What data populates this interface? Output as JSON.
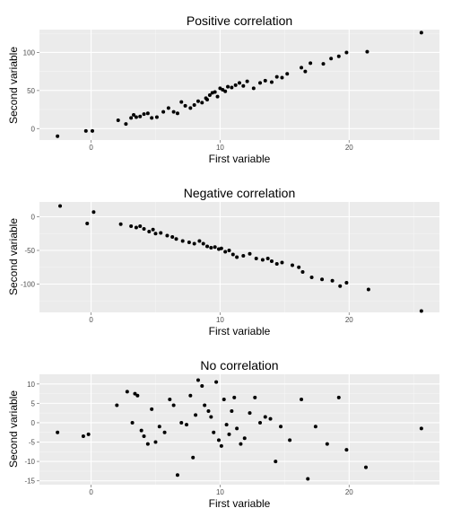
{
  "chart_data": [
    {
      "type": "scatter",
      "title": "Positive correlation",
      "xlabel": "First variable",
      "ylabel": "Second variable",
      "xlim": [
        -4,
        27
      ],
      "ylim": [
        -15,
        130
      ],
      "x_ticks": [
        0,
        10,
        20
      ],
      "y_ticks": [
        0,
        50,
        100
      ],
      "grid": true,
      "points": [
        [
          -2.6,
          -10
        ],
        [
          -0.4,
          -3
        ],
        [
          0.1,
          -3
        ],
        [
          2.1,
          11
        ],
        [
          2.7,
          6
        ],
        [
          3.1,
          14
        ],
        [
          3.3,
          18
        ],
        [
          3.5,
          15
        ],
        [
          3.8,
          16
        ],
        [
          4.1,
          19
        ],
        [
          4.4,
          20
        ],
        [
          4.7,
          14
        ],
        [
          5.1,
          15
        ],
        [
          5.6,
          22
        ],
        [
          6.0,
          27
        ],
        [
          6.4,
          22
        ],
        [
          6.7,
          20
        ],
        [
          7.0,
          35
        ],
        [
          7.3,
          30
        ],
        [
          7.7,
          27
        ],
        [
          8.0,
          31
        ],
        [
          8.3,
          36
        ],
        [
          8.6,
          34
        ],
        [
          8.9,
          40
        ],
        [
          9.0,
          38
        ],
        [
          9.2,
          44
        ],
        [
          9.4,
          47
        ],
        [
          9.6,
          48
        ],
        [
          9.8,
          42
        ],
        [
          10.0,
          53
        ],
        [
          10.2,
          51
        ],
        [
          10.4,
          49
        ],
        [
          10.6,
          55
        ],
        [
          10.9,
          54
        ],
        [
          11.2,
          57
        ],
        [
          11.5,
          60
        ],
        [
          11.8,
          56
        ],
        [
          12.1,
          62
        ],
        [
          12.6,
          53
        ],
        [
          13.1,
          60
        ],
        [
          13.5,
          63
        ],
        [
          14.0,
          61
        ],
        [
          14.4,
          68
        ],
        [
          14.8,
          67
        ],
        [
          15.2,
          72
        ],
        [
          16.3,
          80
        ],
        [
          16.6,
          75
        ],
        [
          17.0,
          86
        ],
        [
          18.0,
          85
        ],
        [
          18.6,
          92
        ],
        [
          19.2,
          95
        ],
        [
          19.8,
          100
        ],
        [
          21.4,
          101
        ],
        [
          25.6,
          126
        ]
      ]
    },
    {
      "type": "scatter",
      "title": "Negative correlation",
      "xlabel": "First variable",
      "ylabel": "Second variable",
      "xlim": [
        -4,
        27
      ],
      "ylim": [
        -142,
        22
      ],
      "x_ticks": [
        0,
        10,
        20
      ],
      "y_ticks": [
        0,
        -50,
        -100
      ],
      "grid": true,
      "points": [
        [
          -2.4,
          16
        ],
        [
          -0.3,
          -10
        ],
        [
          0.2,
          7
        ],
        [
          2.3,
          -11
        ],
        [
          3.1,
          -14
        ],
        [
          3.5,
          -16
        ],
        [
          3.8,
          -14
        ],
        [
          4.1,
          -18
        ],
        [
          4.5,
          -22
        ],
        [
          4.8,
          -19
        ],
        [
          5.0,
          -25
        ],
        [
          5.4,
          -24
        ],
        [
          5.9,
          -28
        ],
        [
          6.3,
          -30
        ],
        [
          6.6,
          -33
        ],
        [
          7.1,
          -36
        ],
        [
          7.6,
          -38
        ],
        [
          8.0,
          -40
        ],
        [
          8.4,
          -36
        ],
        [
          8.7,
          -40
        ],
        [
          9.0,
          -44
        ],
        [
          9.3,
          -46
        ],
        [
          9.6,
          -45
        ],
        [
          9.9,
          -48
        ],
        [
          10.1,
          -47
        ],
        [
          10.4,
          -52
        ],
        [
          10.7,
          -50
        ],
        [
          11.0,
          -56
        ],
        [
          11.3,
          -60
        ],
        [
          11.8,
          -58
        ],
        [
          12.3,
          -55
        ],
        [
          12.8,
          -62
        ],
        [
          13.3,
          -64
        ],
        [
          13.7,
          -62
        ],
        [
          14.0,
          -66
        ],
        [
          14.4,
          -70
        ],
        [
          14.8,
          -68
        ],
        [
          15.6,
          -72
        ],
        [
          16.1,
          -75
        ],
        [
          16.4,
          -82
        ],
        [
          17.1,
          -90
        ],
        [
          17.9,
          -93
        ],
        [
          18.7,
          -95
        ],
        [
          19.3,
          -103
        ],
        [
          19.8,
          -98
        ],
        [
          21.5,
          -108
        ],
        [
          25.6,
          -140
        ]
      ]
    },
    {
      "type": "scatter",
      "title": "No correlation",
      "xlabel": "First variable",
      "ylabel": "Second variable",
      "xlim": [
        -4,
        27
      ],
      "ylim": [
        -16,
        12.5
      ],
      "x_ticks": [
        0,
        10,
        20
      ],
      "y_ticks": [
        -15,
        -10,
        -5,
        0,
        5,
        10
      ],
      "grid": true,
      "points": [
        [
          -2.6,
          -2.5
        ],
        [
          -0.6,
          -3.5
        ],
        [
          -0.2,
          -3
        ],
        [
          2.0,
          4.5
        ],
        [
          2.8,
          8
        ],
        [
          3.2,
          0
        ],
        [
          3.4,
          7.5
        ],
        [
          3.6,
          7
        ],
        [
          3.9,
          -2
        ],
        [
          4.1,
          -3.5
        ],
        [
          4.4,
          -5.5
        ],
        [
          4.7,
          3.5
        ],
        [
          5.0,
          -5
        ],
        [
          5.3,
          -1
        ],
        [
          5.7,
          -2.5
        ],
        [
          6.1,
          6
        ],
        [
          6.4,
          4.5
        ],
        [
          6.7,
          -13.5
        ],
        [
          7.0,
          0
        ],
        [
          7.4,
          -0.5
        ],
        [
          7.7,
          7
        ],
        [
          7.9,
          -9
        ],
        [
          8.1,
          2
        ],
        [
          8.3,
          11
        ],
        [
          8.6,
          9.5
        ],
        [
          8.8,
          4.5
        ],
        [
          9.1,
          3
        ],
        [
          9.3,
          1.5
        ],
        [
          9.5,
          -2.5
        ],
        [
          9.7,
          10.5
        ],
        [
          9.9,
          -4.5
        ],
        [
          10.1,
          -6
        ],
        [
          10.3,
          6
        ],
        [
          10.5,
          -0.5
        ],
        [
          10.7,
          -3
        ],
        [
          10.9,
          3
        ],
        [
          11.1,
          6.5
        ],
        [
          11.3,
          -1.5
        ],
        [
          11.6,
          -5.5
        ],
        [
          11.9,
          -4
        ],
        [
          12.3,
          2.5
        ],
        [
          12.7,
          6.5
        ],
        [
          13.1,
          0
        ],
        [
          13.5,
          1.5
        ],
        [
          13.9,
          1
        ],
        [
          14.3,
          -10
        ],
        [
          14.7,
          -1
        ],
        [
          15.4,
          -4.5
        ],
        [
          16.3,
          6
        ],
        [
          16.8,
          -14.5
        ],
        [
          17.4,
          -1
        ],
        [
          18.3,
          -5.5
        ],
        [
          19.2,
          6.5
        ],
        [
          19.8,
          -7
        ],
        [
          21.3,
          -11.5
        ],
        [
          25.6,
          -1.5
        ]
      ]
    }
  ]
}
